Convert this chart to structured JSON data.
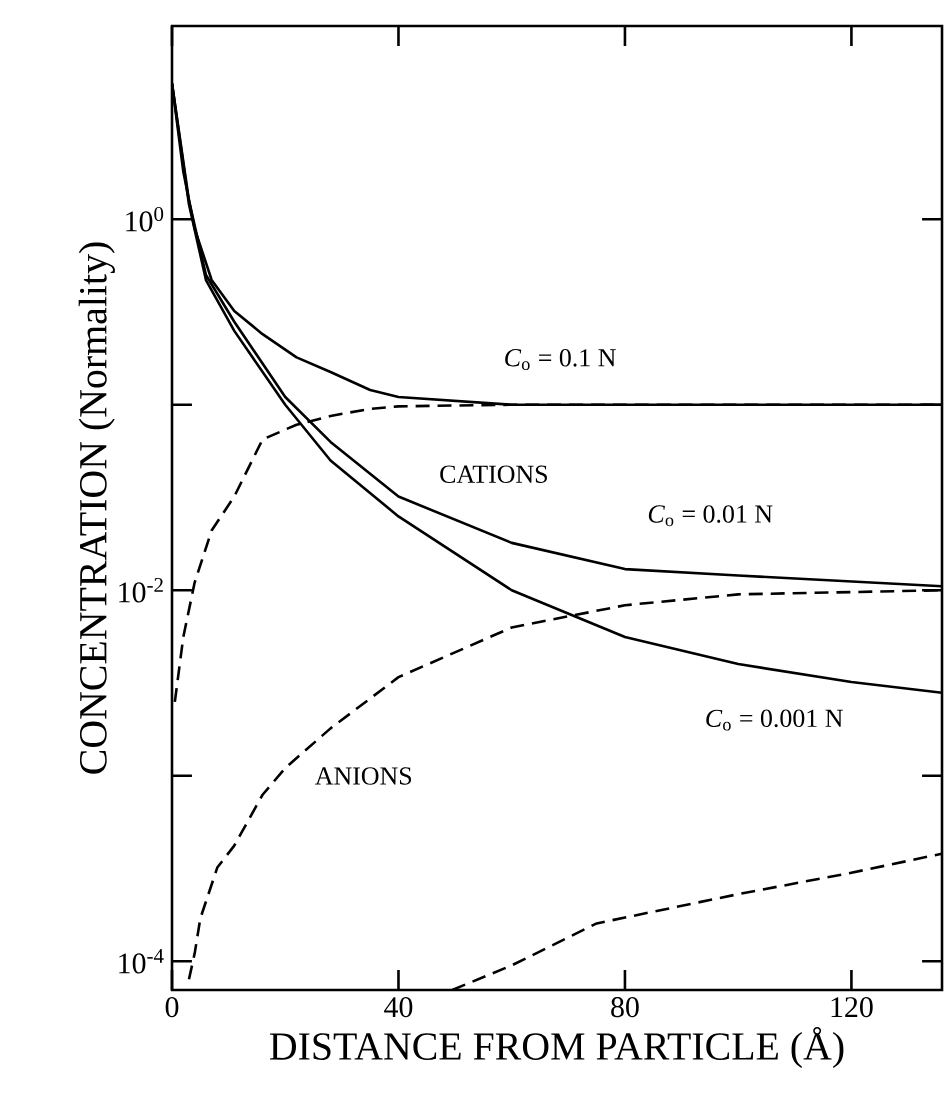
{
  "chart_data": {
    "type": "line",
    "xlabel": "DISTANCE FROM PARTICLE   (Å)",
    "ylabel": "CONCENTRATION (Normality)",
    "log": "y",
    "marker": "none",
    "grid": false,
    "xlim": [
      0,
      136
    ],
    "xticks": [
      0,
      40,
      80,
      120
    ],
    "ylim": [
      7e-05,
      11
    ],
    "yticks": [
      {
        "value": 1,
        "label": "10$^{0}$"
      },
      {
        "value": 0.1,
        "label": null
      },
      {
        "value": 0.01,
        "label": "10$^{-2}$"
      },
      {
        "value": 0.001,
        "label": null
      },
      {
        "value": 0.0001,
        "label": "10$^{-4}$"
      }
    ],
    "series": [
      {
        "color": "#000000",
        "line_style": "solid",
        "x": [
          0,
          2,
          4,
          7,
          11,
          16,
          22,
          28,
          35,
          40,
          60,
          100,
          136
        ],
        "values": [
          5.4,
          1.8,
          0.89,
          0.47,
          0.32,
          0.24,
          0.18,
          0.15,
          0.12,
          0.11,
          0.1,
          0.1,
          0.1
        ]
      },
      {
        "color": "#000000",
        "line_style": "dashed",
        "x": [
          0.5,
          2,
          4,
          7,
          11,
          16,
          22,
          28,
          35,
          40,
          60,
          100,
          136
        ],
        "values": [
          0.0025,
          0.0056,
          0.011,
          0.021,
          0.032,
          0.065,
          0.078,
          0.087,
          0.095,
          0.098,
          0.1,
          0.1,
          0.1
        ]
      },
      {
        "color": "#000000",
        "line_style": "solid",
        "x": [
          0,
          3,
          6,
          11,
          20,
          28,
          40,
          60,
          80,
          100,
          136
        ],
        "values": [
          5.4,
          1.26,
          0.5,
          0.28,
          0.11,
          0.063,
          0.032,
          0.018,
          0.013,
          0.012,
          0.0105
        ]
      },
      {
        "color": "#000000",
        "line_style": "dashed",
        "x": [
          3,
          4,
          5,
          8,
          11,
          16,
          20,
          28,
          40,
          60,
          80,
          100,
          136
        ],
        "values": [
          8e-05,
          0.00011,
          0.00017,
          0.00032,
          0.00042,
          0.00079,
          0.0011,
          0.0018,
          0.0034,
          0.0063,
          0.0083,
          0.0095,
          0.01
        ]
      },
      {
        "color": "#000000",
        "line_style": "solid",
        "x": [
          0,
          3,
          6,
          11,
          20,
          28,
          40,
          60,
          80,
          100,
          120,
          136
        ],
        "values": [
          5.4,
          1.2,
          0.47,
          0.25,
          0.1,
          0.05,
          0.025,
          0.01,
          0.0056,
          0.004,
          0.0032,
          0.0028
        ]
      },
      {
        "color": "#000000",
        "line_style": "dashed",
        "x": [
          49.5,
          60,
          75,
          100,
          120,
          136
        ],
        "values": [
          7e-05,
          9.5e-05,
          0.00016,
          0.00023,
          0.0003,
          0.00038
        ]
      }
    ],
    "annotations": [
      "*C*$_{o}$ = 0.1 N",
      "CATIONS",
      "*C*$_{o}$ = 0.01 N",
      "*C*$_{o}$ = 0.001 N",
      "ANIONS"
    ]
  }
}
